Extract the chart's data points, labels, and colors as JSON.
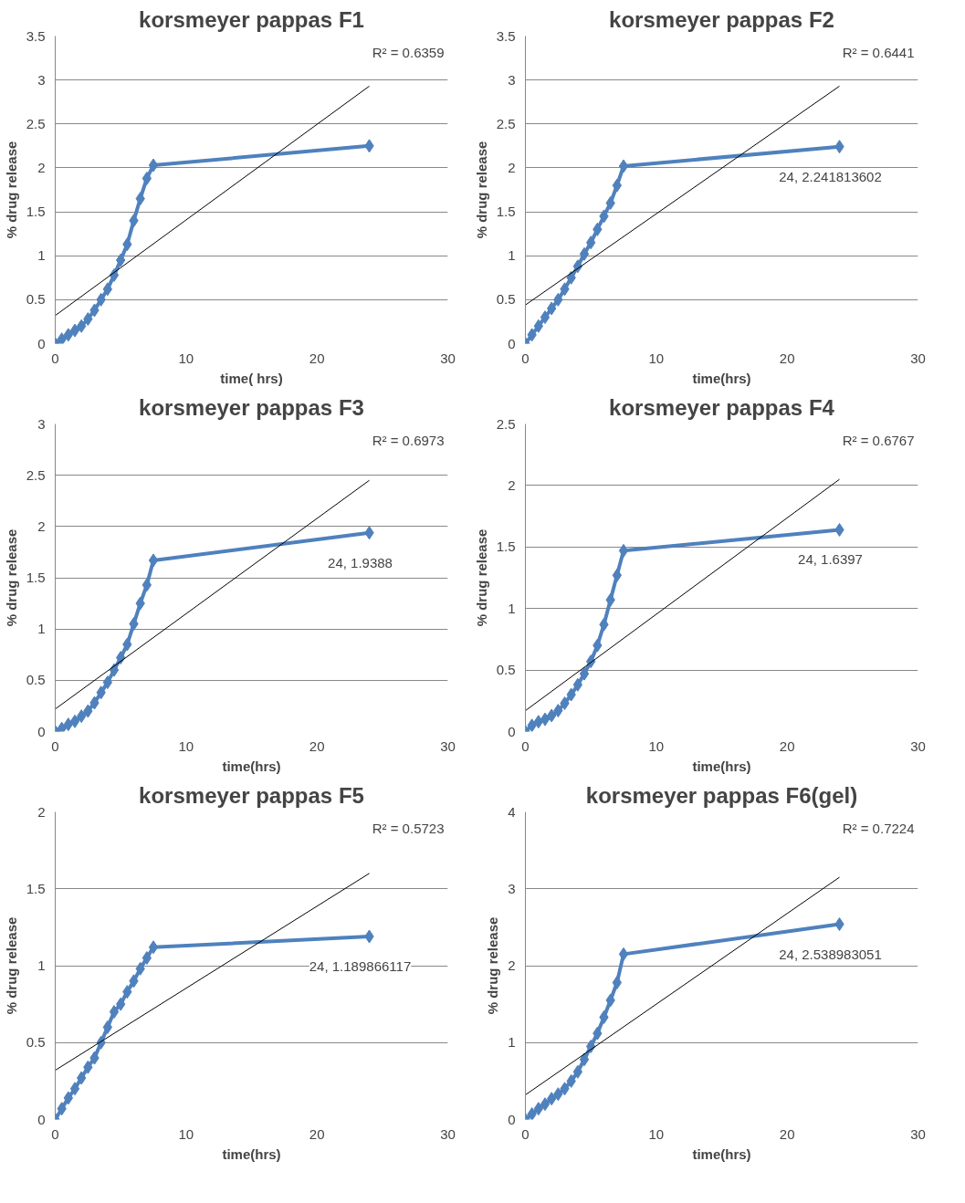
{
  "chart_data": [
    {
      "type": "line",
      "title": "korsmeyer pappas F1",
      "xlabel": "time( hrs)",
      "ylabel": "% drug release",
      "xlim": [
        0,
        30
      ],
      "xticks": [
        0,
        10,
        20,
        30
      ],
      "ylim": [
        0,
        3.5
      ],
      "yticks": [
        0,
        0.5,
        1,
        1.5,
        2,
        2.5,
        3,
        3.5
      ],
      "grid": "y",
      "marker": "diamond",
      "annotations": [
        "R² = 0.6359"
      ],
      "series": [
        {
          "color": "#4f81bd",
          "x": [
            0,
            0.5,
            1,
            1.5,
            2,
            2.5,
            3,
            3.5,
            4,
            4.5,
            5,
            5.5,
            6,
            6.5,
            7,
            7.5,
            24
          ],
          "values": [
            0,
            0.05,
            0.1,
            0.15,
            0.2,
            0.28,
            0.38,
            0.5,
            0.62,
            0.78,
            0.95,
            1.13,
            1.4,
            1.65,
            1.88,
            2.03,
            2.25
          ]
        },
        {
          "type": "line",
          "color": "#000000",
          "marker": "none",
          "x": [
            0,
            24
          ],
          "values": [
            0.32,
            2.93
          ]
        }
      ]
    },
    {
      "type": "line",
      "title": "korsmeyer pappas F2",
      "xlabel": "time(hrs)",
      "ylabel": "% drug release",
      "xlim": [
        0,
        30
      ],
      "xticks": [
        0,
        10,
        20,
        30
      ],
      "ylim": [
        0,
        3.5
      ],
      "yticks": [
        0,
        0.5,
        1,
        1.5,
        2,
        2.5,
        3,
        3.5
      ],
      "grid": "y",
      "marker": "diamond",
      "annotations": [
        "R² = 0.6441"
      ],
      "series": [
        {
          "color": "#4f81bd",
          "x": [
            0,
            0.5,
            1,
            1.5,
            2,
            2.5,
            3,
            3.5,
            4,
            4.5,
            5,
            5.5,
            6,
            6.5,
            7,
            7.5,
            24
          ],
          "values": [
            0,
            0.1,
            0.2,
            0.3,
            0.4,
            0.5,
            0.62,
            0.75,
            0.88,
            1.02,
            1.15,
            1.3,
            1.45,
            1.6,
            1.8,
            2.02,
            2.241813602
          ],
          "value_labels": [
            null,
            null,
            null,
            null,
            null,
            null,
            null,
            null,
            null,
            null,
            null,
            null,
            null,
            null,
            null,
            null,
            "24, 2.241813602"
          ]
        },
        {
          "type": "line",
          "color": "#000000",
          "marker": "none",
          "x": [
            0,
            24
          ],
          "values": [
            0.44,
            2.93
          ]
        }
      ]
    },
    {
      "type": "line",
      "title": "korsmeyer pappas F3",
      "xlabel": "time(hrs)",
      "ylabel": "% drug release",
      "xlim": [
        0,
        30
      ],
      "xticks": [
        0,
        10,
        20,
        30
      ],
      "ylim": [
        0,
        3
      ],
      "yticks": [
        0,
        0.5,
        1,
        1.5,
        2,
        2.5,
        3
      ],
      "grid": "y",
      "marker": "diamond",
      "annotations": [
        "R² = 0.6973"
      ],
      "series": [
        {
          "color": "#4f81bd",
          "x": [
            0,
            0.5,
            1,
            1.5,
            2,
            2.5,
            3,
            3.5,
            4,
            4.5,
            5,
            5.5,
            6,
            6.5,
            7,
            7.5,
            24
          ],
          "values": [
            0,
            0.03,
            0.07,
            0.1,
            0.15,
            0.2,
            0.28,
            0.38,
            0.48,
            0.6,
            0.72,
            0.85,
            1.05,
            1.25,
            1.43,
            1.67,
            1.9388
          ],
          "value_labels": [
            null,
            null,
            null,
            null,
            null,
            null,
            null,
            null,
            null,
            null,
            null,
            null,
            null,
            null,
            null,
            null,
            "24, 1.9388"
          ]
        },
        {
          "type": "line",
          "color": "#000000",
          "marker": "none",
          "x": [
            0,
            24
          ],
          "values": [
            0.22,
            2.45
          ]
        }
      ]
    },
    {
      "type": "line",
      "title": "korsmeyer pappas F4",
      "xlabel": "time(hrs)",
      "ylabel": "% drug release",
      "xlim": [
        0,
        30
      ],
      "xticks": [
        0,
        10,
        20,
        30
      ],
      "ylim": [
        0,
        2.5
      ],
      "yticks": [
        0,
        0.5,
        1,
        1.5,
        2,
        2.5
      ],
      "grid": "y",
      "marker": "diamond",
      "annotations": [
        "R² = 0.6767"
      ],
      "series": [
        {
          "color": "#4f81bd",
          "x": [
            0,
            0.5,
            1,
            1.5,
            2,
            2.5,
            3,
            3.5,
            4,
            4.5,
            5,
            5.5,
            6,
            6.5,
            7,
            7.5,
            24
          ],
          "values": [
            0,
            0.05,
            0.08,
            0.1,
            0.13,
            0.17,
            0.23,
            0.3,
            0.38,
            0.47,
            0.57,
            0.7,
            0.87,
            1.07,
            1.27,
            1.47,
            1.6397
          ],
          "value_labels": [
            null,
            null,
            null,
            null,
            null,
            null,
            null,
            null,
            null,
            null,
            null,
            null,
            null,
            null,
            null,
            null,
            "24, 1.6397"
          ]
        },
        {
          "type": "line",
          "color": "#000000",
          "marker": "none",
          "x": [
            0,
            24
          ],
          "values": [
            0.17,
            2.05
          ]
        }
      ]
    },
    {
      "type": "line",
      "title": "korsmeyer pappas F5",
      "xlabel": "time(hrs)",
      "ylabel": "% drug release",
      "xlim": [
        0,
        30
      ],
      "xticks": [
        0,
        10,
        20,
        30
      ],
      "ylim": [
        0,
        2
      ],
      "yticks": [
        0,
        0.5,
        1,
        1.5,
        2
      ],
      "grid": "y",
      "marker": "diamond",
      "annotations": [
        "R² = 0.5723"
      ],
      "series": [
        {
          "color": "#4f81bd",
          "x": [
            0,
            0.5,
            1,
            1.5,
            2,
            2.5,
            3,
            3.5,
            4,
            4.5,
            5,
            5.5,
            6,
            6.5,
            7,
            7.5,
            24
          ],
          "values": [
            0,
            0.07,
            0.14,
            0.2,
            0.27,
            0.34,
            0.4,
            0.5,
            0.6,
            0.7,
            0.75,
            0.83,
            0.9,
            0.98,
            1.05,
            1.12,
            1.189866117
          ],
          "value_labels": [
            null,
            null,
            null,
            null,
            null,
            null,
            null,
            null,
            null,
            null,
            null,
            null,
            null,
            null,
            null,
            null,
            "24, 1.189866117"
          ]
        },
        {
          "type": "line",
          "color": "#000000",
          "marker": "none",
          "x": [
            0,
            24
          ],
          "values": [
            0.32,
            1.6
          ]
        }
      ]
    },
    {
      "type": "line",
      "title": "korsmeyer pappas F6(gel)",
      "xlabel": "time(hrs)",
      "ylabel": "% drug release",
      "xlim": [
        0,
        30
      ],
      "xticks": [
        0,
        10,
        20,
        30
      ],
      "ylim": [
        0,
        4
      ],
      "yticks": [
        0,
        1,
        2,
        3,
        4
      ],
      "grid": "y",
      "marker": "diamond",
      "annotations": [
        "R² = 0.7224"
      ],
      "series": [
        {
          "color": "#4f81bd",
          "x": [
            0,
            0.5,
            1,
            1.5,
            2,
            2.5,
            3,
            3.5,
            4,
            4.5,
            5,
            5.5,
            6,
            6.5,
            7,
            7.5,
            24
          ],
          "values": [
            0,
            0.07,
            0.14,
            0.2,
            0.27,
            0.33,
            0.4,
            0.5,
            0.62,
            0.78,
            0.95,
            1.12,
            1.33,
            1.55,
            1.78,
            2.15,
            2.538983051
          ],
          "value_labels": [
            null,
            null,
            null,
            null,
            null,
            null,
            null,
            null,
            null,
            null,
            null,
            null,
            null,
            null,
            null,
            null,
            "24, 2.538983051"
          ]
        },
        {
          "type": "line",
          "color": "#000000",
          "marker": "none",
          "x": [
            0,
            24
          ],
          "values": [
            0.32,
            3.15
          ]
        }
      ]
    }
  ]
}
